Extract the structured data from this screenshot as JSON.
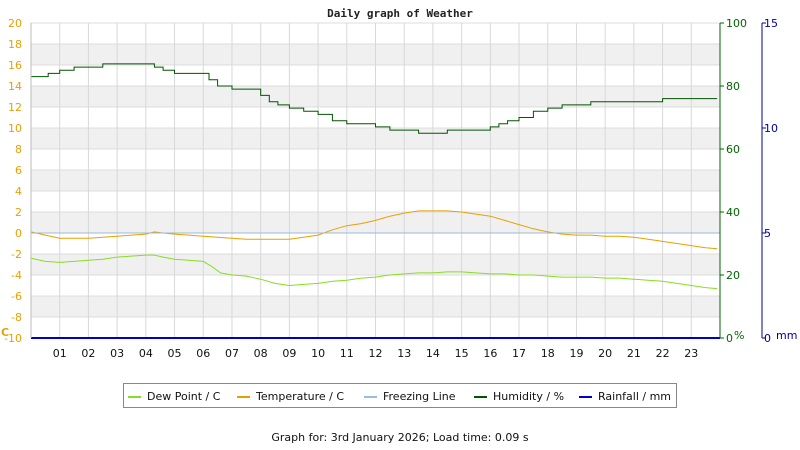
{
  "chart_data": {
    "type": "line",
    "title": "Daily graph of Weather",
    "x_ticks": [
      "01",
      "02",
      "03",
      "04",
      "05",
      "06",
      "07",
      "08",
      "09",
      "10",
      "11",
      "12",
      "13",
      "14",
      "15",
      "16",
      "17",
      "18",
      "19",
      "20",
      "21",
      "22",
      "23"
    ],
    "xlim": [
      0,
      24
    ],
    "y_left": {
      "label": "C",
      "ylim": [
        -10,
        20
      ],
      "ticks": [
        -10,
        -8,
        -6,
        -4,
        -2,
        0,
        2,
        4,
        6,
        8,
        10,
        12,
        14,
        16,
        18,
        20
      ],
      "color": "#e8a000"
    },
    "y_humidity": {
      "label": "%",
      "ylim": [
        0,
        100
      ],
      "ticks": [
        0,
        20,
        40,
        60,
        80,
        100
      ],
      "color": "#006600"
    },
    "y_rain": {
      "label": "mm",
      "ylim": [
        0,
        15
      ],
      "ticks": [
        0,
        5,
        10,
        15
      ],
      "color": "#000099"
    },
    "series": [
      {
        "name": "Dew Point / C",
        "color": "#88dd22",
        "axis": "temp",
        "x": [
          0,
          0.5,
          1,
          1.5,
          2,
          2.5,
          3,
          3.5,
          4,
          4.3,
          4.6,
          5,
          5.5,
          6,
          6.3,
          6.6,
          7,
          7.5,
          8,
          8.5,
          9,
          9.5,
          10,
          10.5,
          11,
          11.5,
          12,
          12.5,
          13,
          13.5,
          14,
          14.5,
          15,
          15.5,
          16,
          16.5,
          17,
          17.5,
          18,
          18.5,
          19,
          19.5,
          20,
          20.5,
          21,
          21.5,
          22,
          22.5,
          23,
          23.5,
          23.9
        ],
        "y": [
          -2.4,
          -2.7,
          -2.8,
          -2.7,
          -2.6,
          -2.5,
          -2.3,
          -2.2,
          -2.1,
          -2.1,
          -2.3,
          -2.5,
          -2.6,
          -2.7,
          -3.2,
          -3.8,
          -4.0,
          -4.1,
          -4.4,
          -4.8,
          -5.0,
          -4.9,
          -4.8,
          -4.6,
          -4.5,
          -4.3,
          -4.2,
          -4.0,
          -3.9,
          -3.8,
          -3.8,
          -3.7,
          -3.7,
          -3.8,
          -3.9,
          -3.9,
          -4.0,
          -4.0,
          -4.1,
          -4.2,
          -4.2,
          -4.2,
          -4.3,
          -4.3,
          -4.4,
          -4.5,
          -4.6,
          -4.8,
          -5.0,
          -5.2,
          -5.3
        ]
      },
      {
        "name": "Temperature / C",
        "color": "#e8a000",
        "axis": "temp",
        "x": [
          0,
          0.5,
          1,
          1.5,
          2,
          2.5,
          3,
          3.5,
          4,
          4.3,
          4.6,
          5,
          5.5,
          6,
          6.5,
          7,
          7.5,
          8,
          8.5,
          9,
          9.5,
          10,
          10.5,
          11,
          11.5,
          12,
          12.5,
          13,
          13.5,
          14,
          14.5,
          15,
          15.5,
          16,
          16.5,
          17,
          17.5,
          18,
          18.5,
          19,
          19.5,
          20,
          20.5,
          21,
          21.5,
          22,
          22.5,
          23,
          23.5,
          23.9
        ],
        "y": [
          0.1,
          -0.2,
          -0.5,
          -0.5,
          -0.5,
          -0.4,
          -0.3,
          -0.2,
          -0.1,
          0.1,
          0.0,
          -0.1,
          -0.2,
          -0.3,
          -0.4,
          -0.5,
          -0.6,
          -0.6,
          -0.6,
          -0.6,
          -0.4,
          -0.2,
          0.3,
          0.7,
          0.9,
          1.2,
          1.6,
          1.9,
          2.1,
          2.1,
          2.1,
          2.0,
          1.8,
          1.6,
          1.2,
          0.8,
          0.4,
          0.1,
          -0.1,
          -0.2,
          -0.2,
          -0.3,
          -0.3,
          -0.4,
          -0.6,
          -0.8,
          -1.0,
          -1.2,
          -1.4,
          -1.5
        ]
      },
      {
        "name": "Freezing Line",
        "color": "#99bbdd",
        "axis": "temp",
        "x": [
          0,
          24
        ],
        "y": [
          0,
          0
        ]
      },
      {
        "name": "Humidity / %",
        "color": "#005500",
        "axis": "humidity",
        "x": [
          0,
          0.6,
          1.0,
          1.5,
          2.0,
          2.5,
          3.0,
          3.5,
          4.0,
          4.3,
          4.6,
          5.0,
          5.5,
          6.0,
          6.2,
          6.5,
          7.0,
          7.5,
          8.0,
          8.3,
          8.6,
          9.0,
          9.5,
          10.0,
          10.5,
          11.0,
          11.5,
          12.0,
          12.5,
          13.0,
          13.5,
          14.0,
          14.5,
          15.0,
          15.5,
          16.0,
          16.3,
          16.6,
          17.0,
          17.5,
          18.0,
          18.5,
          19.0,
          19.5,
          20.0,
          20.5,
          21.0,
          21.5,
          22.0,
          22.5,
          23.0,
          23.9
        ],
        "y": [
          83,
          84,
          85,
          86,
          86,
          87,
          87,
          87,
          87,
          86,
          85,
          84,
          84,
          84,
          82,
          80,
          79,
          79,
          77,
          75,
          74,
          73,
          72,
          71,
          69,
          68,
          68,
          67,
          66,
          66,
          65,
          65,
          66,
          66,
          66,
          67,
          68,
          69,
          70,
          72,
          73,
          74,
          74,
          75,
          75,
          75,
          75,
          75,
          76,
          76,
          76,
          76
        ]
      },
      {
        "name": "Rainfall / mm",
        "color": "#0000cc",
        "axis": "rain",
        "x": [
          0,
          24
        ],
        "y": [
          0,
          0
        ]
      }
    ],
    "grid": true,
    "legend": "bottom"
  },
  "footer": "Graph for: 3rd January 2026; Load time: 0.09 s"
}
